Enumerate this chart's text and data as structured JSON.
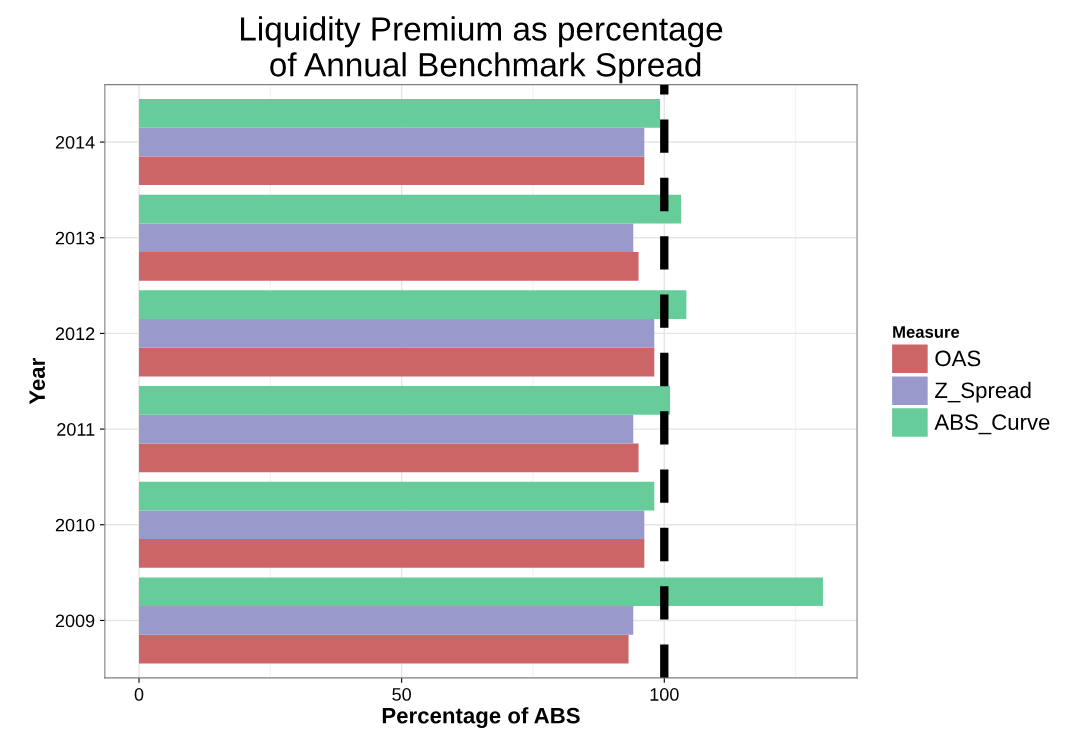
{
  "chart_data": {
    "type": "bar",
    "orientation": "horizontal",
    "title": "Liquidity Premium as percentage\n of Annual Benchmark Spread",
    "xlabel": "Percentage of ABS",
    "ylabel": "Year",
    "legend_title": "Measure",
    "categories": [
      "2014",
      "2013",
      "2012",
      "2011",
      "2010",
      "2009"
    ],
    "series": [
      {
        "name": "OAS",
        "color": "#cc6666",
        "values": [
          96.2,
          95.1,
          98.1,
          95.1,
          96.2,
          93.2
        ]
      },
      {
        "name": "Z_Spread",
        "color": "#9999cc",
        "values": [
          96.2,
          94.1,
          98.1,
          94.1,
          96.2,
          94.1
        ]
      },
      {
        "name": "ABS_Curve",
        "color": "#66cc99",
        "values": [
          99.2,
          103.2,
          104.2,
          101.1,
          98.1,
          130.2
        ]
      }
    ],
    "xlim": [
      -6.5,
      136.7
    ],
    "xticks": [
      0,
      50,
      100
    ],
    "ref_lines": [
      {
        "axis": "x",
        "value": 100,
        "color": "#000000",
        "line_style": "dashed"
      }
    ],
    "grid": true,
    "legend": "right"
  }
}
